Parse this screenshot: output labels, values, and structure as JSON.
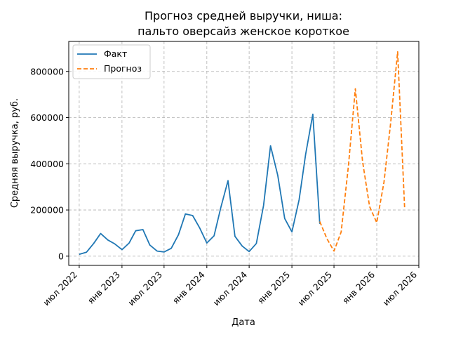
{
  "chart_data": {
    "type": "line",
    "title": [
      "Прогноз средней выручки, ниша:",
      "пальто оверсайз женское короткое"
    ],
    "xlabel": "Дата",
    "ylabel": "Средняя выручка, руб.",
    "x_ticks": [
      {
        "label": "июл 2022",
        "date": "2022-07-01"
      },
      {
        "label": "янв 2023",
        "date": "2023-01-01"
      },
      {
        "label": "июл 2023",
        "date": "2023-07-01"
      },
      {
        "label": "янв 2024",
        "date": "2024-01-01"
      },
      {
        "label": "июл 2024",
        "date": "2024-07-01"
      },
      {
        "label": "янв 2025",
        "date": "2025-01-01"
      },
      {
        "label": "июл 2025",
        "date": "2025-07-01"
      },
      {
        "label": "янв 2026",
        "date": "2026-01-01"
      },
      {
        "label": "июл 2026",
        "date": "2026-07-01"
      }
    ],
    "y_ticks": [
      0,
      200000,
      400000,
      600000,
      800000
    ],
    "xlim": [
      "2022-05-17",
      "2026-07-01"
    ],
    "ylim": [
      -40000,
      930000
    ],
    "grid": true,
    "legend_position": "top-left",
    "series": [
      {
        "name": "Факт",
        "color": "#1f77b4",
        "style": "solid",
        "points": [
          [
            "2022-07-01",
            8000
          ],
          [
            "2022-08-01",
            17000
          ],
          [
            "2022-09-01",
            55000
          ],
          [
            "2022-10-01",
            98000
          ],
          [
            "2022-11-01",
            70000
          ],
          [
            "2022-12-01",
            53000
          ],
          [
            "2023-01-01",
            28000
          ],
          [
            "2023-02-01",
            57000
          ],
          [
            "2023-03-01",
            110000
          ],
          [
            "2023-04-01",
            115000
          ],
          [
            "2023-05-01",
            48000
          ],
          [
            "2023-06-01",
            22000
          ],
          [
            "2023-07-01",
            18000
          ],
          [
            "2023-08-01",
            34000
          ],
          [
            "2023-09-01",
            93000
          ],
          [
            "2023-10-01",
            183000
          ],
          [
            "2023-11-01",
            176000
          ],
          [
            "2023-12-01",
            123000
          ],
          [
            "2024-01-01",
            57000
          ],
          [
            "2024-02-01",
            88000
          ],
          [
            "2024-03-01",
            210000
          ],
          [
            "2024-04-01",
            327000
          ],
          [
            "2024-05-01",
            86000
          ],
          [
            "2024-06-01",
            44000
          ],
          [
            "2024-07-01",
            20000
          ],
          [
            "2024-08-01",
            55000
          ],
          [
            "2024-09-01",
            220000
          ],
          [
            "2024-10-01",
            478000
          ],
          [
            "2024-11-01",
            350000
          ],
          [
            "2024-12-01",
            163000
          ],
          [
            "2025-01-01",
            105000
          ],
          [
            "2025-02-01",
            245000
          ],
          [
            "2025-03-01",
            440000
          ],
          [
            "2025-04-01",
            615000
          ],
          [
            "2025-05-01",
            140000
          ]
        ]
      },
      {
        "name": "Прогноз",
        "color": "#ff7f0e",
        "style": "dashed",
        "points": [
          [
            "2025-05-01",
            150000
          ],
          [
            "2025-06-01",
            75000
          ],
          [
            "2025-07-01",
            22000
          ],
          [
            "2025-08-01",
            105000
          ],
          [
            "2025-09-01",
            390000
          ],
          [
            "2025-10-01",
            725000
          ],
          [
            "2025-11-01",
            410000
          ],
          [
            "2025-12-01",
            215000
          ],
          [
            "2026-01-01",
            145000
          ],
          [
            "2026-02-01",
            320000
          ],
          [
            "2026-03-01",
            570000
          ],
          [
            "2026-04-01",
            885000
          ],
          [
            "2026-05-01",
            205000
          ]
        ]
      }
    ]
  }
}
